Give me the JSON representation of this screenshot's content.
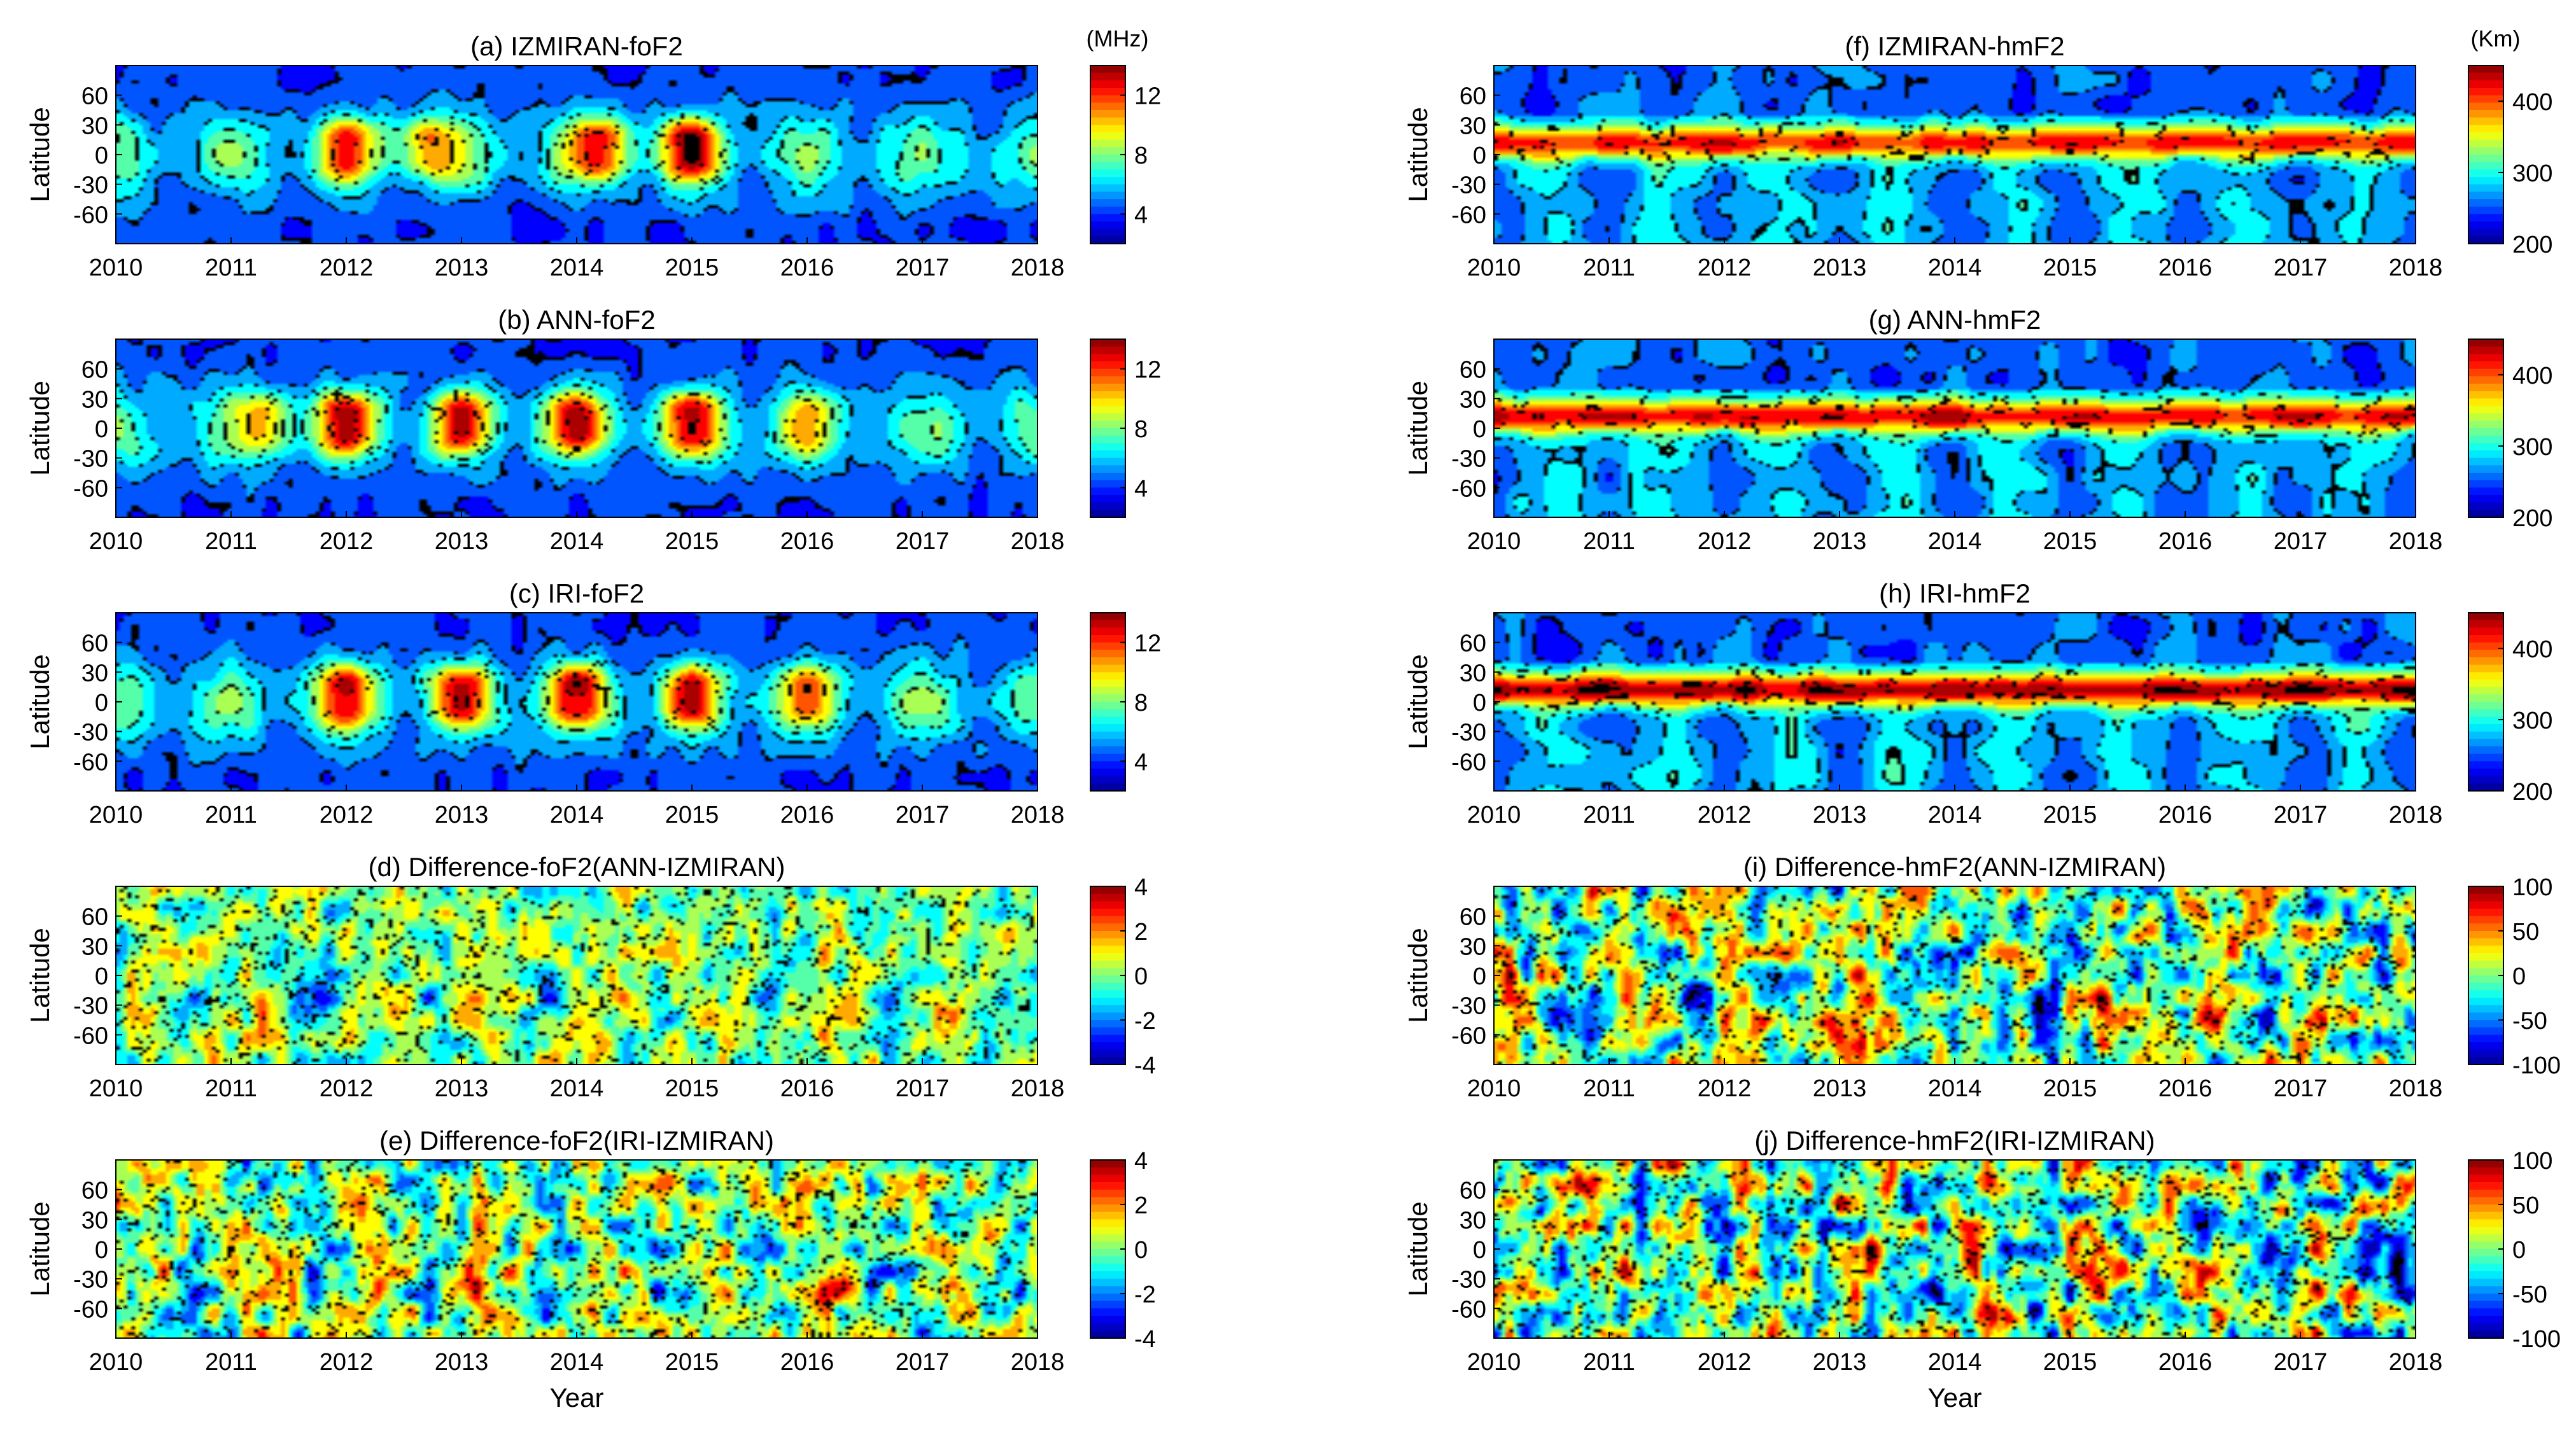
{
  "figure": {
    "xlabel": "Year",
    "ylabel": "Latitude",
    "colormap": [
      "#00008f",
      "#0000ff",
      "#0080ff",
      "#00ffff",
      "#80ff80",
      "#ffff00",
      "#ff8000",
      "#ff0000",
      "#800000"
    ],
    "contour_line_color": "#000000"
  },
  "chart_data": [
    {
      "id": "a",
      "type": "heatmap",
      "title": "(a) IZMIRAN-foF2",
      "unit": "(MHz)",
      "variable": "foF2",
      "x": [
        2010,
        2011,
        2012,
        2013,
        2014,
        2015,
        2016,
        2017,
        2018
      ],
      "xlim": [
        2010,
        2018
      ],
      "yticks": [
        60,
        30,
        0,
        -30,
        -60
      ],
      "ylim": [
        -90,
        90
      ],
      "clim": [
        2,
        14
      ],
      "cbar_ticks": [
        4,
        8,
        12
      ],
      "peak_years": [
        2012,
        2012.7,
        2014.2,
        2015
      ],
      "peak_strength": [
        0.8,
        0.7,
        0.9,
        1.0
      ]
    },
    {
      "id": "b",
      "type": "heatmap",
      "title": "(b) ANN-foF2",
      "unit": "",
      "variable": "foF2",
      "x": [
        2010,
        2011,
        2012,
        2013,
        2014,
        2015,
        2016,
        2017,
        2018
      ],
      "xlim": [
        2010,
        2018
      ],
      "yticks": [
        60,
        30,
        0,
        -30,
        -60
      ],
      "ylim": [
        -90,
        90
      ],
      "clim": [
        2,
        14
      ],
      "cbar_ticks": [
        4,
        8,
        12
      ],
      "peak_years": [
        2011.3,
        2012,
        2013,
        2014,
        2015,
        2016
      ],
      "peak_strength": [
        0.6,
        0.9,
        0.85,
        0.9,
        0.85,
        0.5
      ]
    },
    {
      "id": "c",
      "type": "heatmap",
      "title": "(c) IRI-foF2",
      "unit": "",
      "variable": "foF2",
      "x": [
        2010,
        2011,
        2012,
        2013,
        2014,
        2015,
        2016,
        2017,
        2018
      ],
      "xlim": [
        2010,
        2018
      ],
      "yticks": [
        60,
        30,
        0,
        -30,
        -60
      ],
      "ylim": [
        -90,
        90
      ],
      "clim": [
        2,
        14
      ],
      "cbar_ticks": [
        4,
        8,
        12
      ],
      "peak_years": [
        2012,
        2013,
        2014,
        2015,
        2016
      ],
      "peak_strength": [
        0.85,
        0.85,
        0.9,
        0.85,
        0.55
      ]
    },
    {
      "id": "d",
      "type": "heatmap",
      "title": "(d) Difference-foF2(ANN-IZMIRAN)",
      "unit": "",
      "variable": "diff",
      "x": [
        2010,
        2011,
        2012,
        2013,
        2014,
        2015,
        2016,
        2017,
        2018
      ],
      "xlim": [
        2010,
        2018
      ],
      "yticks": [
        60,
        30,
        0,
        -30,
        -60
      ],
      "ylim": [
        -90,
        90
      ],
      "clim": [
        -4,
        4
      ],
      "cbar_ticks": [
        4,
        2,
        0,
        -2,
        -4
      ],
      "amplitude": 0.35
    },
    {
      "id": "e",
      "type": "heatmap",
      "title": "(e) Difference-foF2(IRI-IZMIRAN)",
      "unit": "",
      "variable": "diff",
      "x": [
        2010,
        2011,
        2012,
        2013,
        2014,
        2015,
        2016,
        2017,
        2018
      ],
      "xlim": [
        2010,
        2018
      ],
      "yticks": [
        60,
        30,
        0,
        -30,
        -60
      ],
      "ylim": [
        -90,
        90
      ],
      "clim": [
        -4,
        4
      ],
      "cbar_ticks": [
        4,
        2,
        0,
        -2,
        -4
      ],
      "amplitude": 0.45
    },
    {
      "id": "f",
      "type": "heatmap",
      "title": "(f) IZMIRAN-hmF2",
      "unit": "(Km)",
      "variable": "hmF2",
      "x": [
        2010,
        2011,
        2012,
        2013,
        2014,
        2015,
        2016,
        2017,
        2018
      ],
      "xlim": [
        2010,
        2018
      ],
      "yticks": [
        60,
        30,
        0,
        -30,
        -60
      ],
      "ylim": [
        -90,
        90
      ],
      "clim": [
        200,
        450
      ],
      "cbar_ticks": [
        400,
        300,
        200
      ],
      "band_strength": 0.75
    },
    {
      "id": "g",
      "type": "heatmap",
      "title": "(g) ANN-hmF2",
      "unit": "",
      "variable": "hmF2",
      "x": [
        2010,
        2011,
        2012,
        2013,
        2014,
        2015,
        2016,
        2017,
        2018
      ],
      "xlim": [
        2010,
        2018
      ],
      "yticks": [
        60,
        30,
        0,
        -30,
        -60
      ],
      "ylim": [
        -90,
        90
      ],
      "clim": [
        200,
        450
      ],
      "cbar_ticks": [
        400,
        300,
        200
      ],
      "band_strength": 0.8
    },
    {
      "id": "h",
      "type": "heatmap",
      "title": "(h) IRI-hmF2",
      "unit": "",
      "variable": "hmF2",
      "x": [
        2010,
        2011,
        2012,
        2013,
        2014,
        2015,
        2016,
        2017,
        2018
      ],
      "xlim": [
        2010,
        2018
      ],
      "yticks": [
        60,
        30,
        0,
        -30,
        -60
      ],
      "ylim": [
        -90,
        90
      ],
      "clim": [
        200,
        450
      ],
      "cbar_ticks": [
        400,
        300,
        200
      ],
      "band_strength": 0.9
    },
    {
      "id": "i",
      "type": "heatmap",
      "title": "(i) Difference-hmF2(ANN-IZMIRAN)",
      "unit": "",
      "variable": "diff",
      "x": [
        2010,
        2011,
        2012,
        2013,
        2014,
        2015,
        2016,
        2017,
        2018
      ],
      "xlim": [
        2010,
        2018
      ],
      "yticks": [
        60,
        30,
        0,
        -30,
        -60
      ],
      "ylim": [
        -90,
        90
      ],
      "clim": [
        -100,
        100
      ],
      "cbar_ticks": [
        100,
        50,
        0,
        -50,
        -100
      ],
      "amplitude": 0.55
    },
    {
      "id": "j",
      "type": "heatmap",
      "title": "(j) Difference-hmF2(IRI-IZMIRAN)",
      "unit": "",
      "variable": "diff",
      "x": [
        2010,
        2011,
        2012,
        2013,
        2014,
        2015,
        2016,
        2017,
        2018
      ],
      "xlim": [
        2010,
        2018
      ],
      "yticks": [
        60,
        30,
        0,
        -30,
        -60
      ],
      "ylim": [
        -90,
        90
      ],
      "clim": [
        -100,
        100
      ],
      "cbar_ticks": [
        100,
        50,
        0,
        -50,
        -100
      ],
      "amplitude": 0.6
    }
  ]
}
